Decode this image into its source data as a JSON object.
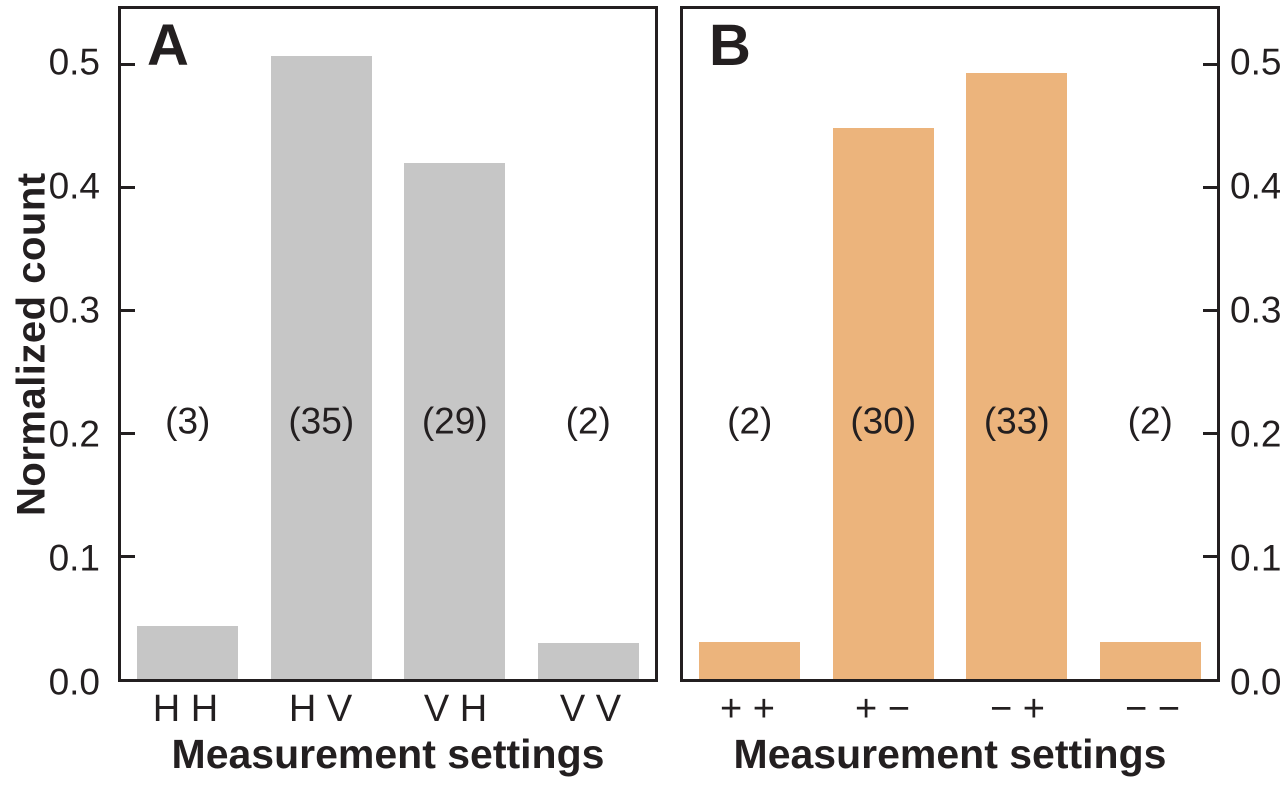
{
  "figure": {
    "ylabel": "Normalized count",
    "ytick_labels": [
      "0.0",
      "0.1",
      "0.2",
      "0.3",
      "0.4",
      "0.5"
    ],
    "colors": {
      "frame": "#231f20",
      "text": "#231f20",
      "background": "#ffffff",
      "panel_a_bar": "#c6c6c6",
      "panel_b_bar": "#ecb47c"
    }
  },
  "chart_data": [
    {
      "type": "bar",
      "panel_label": "A",
      "categories": [
        "H H",
        "H V",
        "V H",
        "V V"
      ],
      "values": [
        0.043,
        0.507,
        0.42,
        0.029
      ],
      "counts": [
        "(3)",
        "(35)",
        "(29)",
        "(2)"
      ],
      "bar_color": "#c6c6c6",
      "xlabel": "Measurement settings",
      "ylabel": "Normalized count",
      "ylim": [
        0,
        0.545
      ],
      "yticks": [
        0.0,
        0.1,
        0.2,
        0.3,
        0.4,
        0.5
      ],
      "yaxis_side": "left",
      "grid": false,
      "legend": false,
      "count_label_y": 0.21
    },
    {
      "type": "bar",
      "panel_label": "B",
      "categories": [
        "+ +",
        "+ −",
        "− +",
        "− −"
      ],
      "values": [
        0.03,
        0.448,
        0.493,
        0.03
      ],
      "counts": [
        "(2)",
        "(30)",
        "(33)",
        "(2)"
      ],
      "bar_color": "#ecb47c",
      "xlabel": "Measurement settings",
      "ylabel": "Normalized count",
      "ylim": [
        0,
        0.545
      ],
      "yticks": [
        0.0,
        0.1,
        0.2,
        0.3,
        0.4,
        0.5
      ],
      "yaxis_side": "right",
      "grid": false,
      "legend": false,
      "count_label_y": 0.21
    }
  ]
}
